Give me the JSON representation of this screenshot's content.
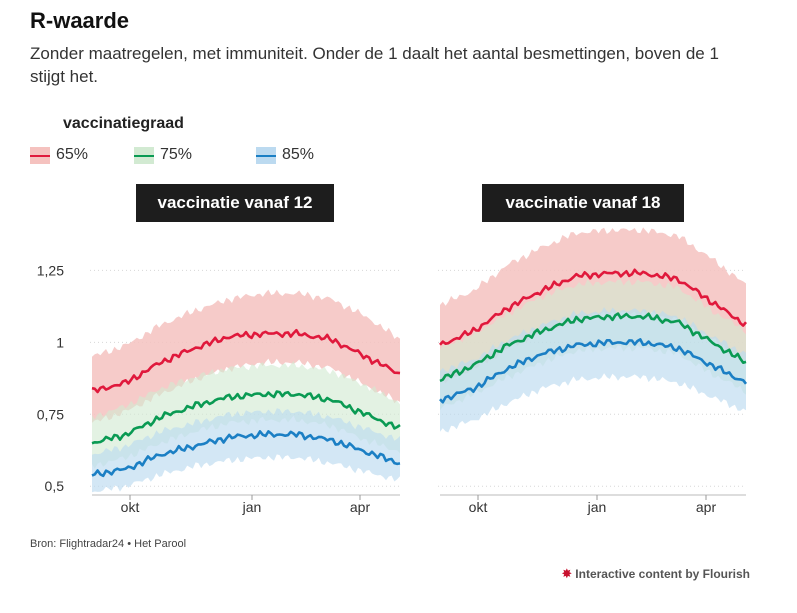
{
  "title": "R-waarde",
  "subtitle": "Zonder maatregelen, met immuniteit. Onder de 1 daalt het aantal besmettingen, boven de 1 stijgt het.",
  "legend_title": "vaccinatiegraad",
  "source": "Bron: Flightradar24 • Het Parool",
  "credit": "Interactive content by Flourish",
  "credit_icon": "flourish-sunburst-icon",
  "colors": {
    "s65_line": "#e0193c",
    "s65_band": "#f5c2bf",
    "s75_line": "#0a9a53",
    "s75_band": "#d2ead2",
    "s85_line": "#1b7fc4",
    "s85_band": "#bcdaf0",
    "panel_bg": "#1d1d1d",
    "grid": "#d7d7d7"
  },
  "chart_data": [
    {
      "type": "area",
      "title": "vaccinatie vanaf 12",
      "x_ticks": [
        "okt",
        "jan",
        "apr"
      ],
      "y_ticks": [
        "0,5",
        "0,75",
        "1",
        "1,25"
      ],
      "y_tick_values": [
        0.5,
        0.75,
        1.0,
        1.25
      ],
      "ylim": [
        0.48,
        1.3
      ],
      "grid": true,
      "legend": "top-left",
      "x_months": [
        0,
        1,
        2,
        3,
        4,
        5,
        6,
        7,
        8,
        9
      ],
      "series": [
        {
          "name": "65%",
          "values": [
            0.83,
            0.86,
            0.93,
            0.98,
            1.02,
            1.03,
            1.03,
            1.01,
            0.95,
            0.89
          ],
          "lower": [
            0.72,
            0.76,
            0.82,
            0.87,
            0.91,
            0.93,
            0.93,
            0.91,
            0.85,
            0.79
          ],
          "upper": [
            0.95,
            0.99,
            1.06,
            1.11,
            1.15,
            1.17,
            1.17,
            1.15,
            1.09,
            1.01
          ]
        },
        {
          "name": "75%",
          "values": [
            0.65,
            0.68,
            0.74,
            0.78,
            0.81,
            0.82,
            0.82,
            0.8,
            0.75,
            0.7
          ],
          "lower": [
            0.57,
            0.6,
            0.65,
            0.69,
            0.72,
            0.73,
            0.73,
            0.71,
            0.66,
            0.62
          ],
          "upper": [
            0.74,
            0.78,
            0.84,
            0.88,
            0.91,
            0.92,
            0.92,
            0.9,
            0.85,
            0.79
          ]
        },
        {
          "name": "85%",
          "values": [
            0.54,
            0.56,
            0.61,
            0.64,
            0.67,
            0.68,
            0.68,
            0.66,
            0.62,
            0.58
          ],
          "lower": [
            0.48,
            0.5,
            0.54,
            0.57,
            0.59,
            0.6,
            0.6,
            0.58,
            0.55,
            0.52
          ],
          "upper": [
            0.61,
            0.64,
            0.69,
            0.72,
            0.75,
            0.76,
            0.76,
            0.74,
            0.7,
            0.66
          ]
        }
      ]
    },
    {
      "type": "area",
      "title": "vaccinatie vanaf 18",
      "x_ticks": [
        "okt",
        "jan",
        "apr"
      ],
      "ylim": [
        0.48,
        1.3
      ],
      "grid": true,
      "x_months": [
        0,
        1,
        2,
        3,
        4,
        5,
        6,
        7,
        8,
        9
      ],
      "series": [
        {
          "name": "65%",
          "values": [
            0.99,
            1.04,
            1.12,
            1.18,
            1.23,
            1.24,
            1.24,
            1.22,
            1.14,
            1.06
          ],
          "lower": [
            0.86,
            0.91,
            0.98,
            1.04,
            1.08,
            1.1,
            1.1,
            1.08,
            1.01,
            0.93
          ],
          "upper": [
            1.13,
            1.18,
            1.27,
            1.33,
            1.38,
            1.39,
            1.39,
            1.37,
            1.29,
            1.2
          ]
        },
        {
          "name": "75%",
          "values": [
            0.87,
            0.92,
            0.99,
            1.04,
            1.08,
            1.09,
            1.09,
            1.07,
            1.0,
            0.93
          ],
          "lower": [
            0.77,
            0.82,
            0.88,
            0.93,
            0.97,
            0.98,
            0.98,
            0.96,
            0.89,
            0.83
          ],
          "upper": [
            0.98,
            1.03,
            1.1,
            1.16,
            1.2,
            1.21,
            1.21,
            1.19,
            1.11,
            1.04
          ]
        },
        {
          "name": "85%",
          "values": [
            0.8,
            0.84,
            0.91,
            0.96,
            0.99,
            1.0,
            1.0,
            0.98,
            0.92,
            0.86
          ],
          "lower": [
            0.69,
            0.73,
            0.79,
            0.84,
            0.87,
            0.88,
            0.88,
            0.86,
            0.81,
            0.76
          ],
          "upper": [
            0.9,
            0.94,
            1.01,
            1.06,
            1.1,
            1.11,
            1.11,
            1.09,
            1.02,
            0.96
          ]
        }
      ]
    }
  ]
}
